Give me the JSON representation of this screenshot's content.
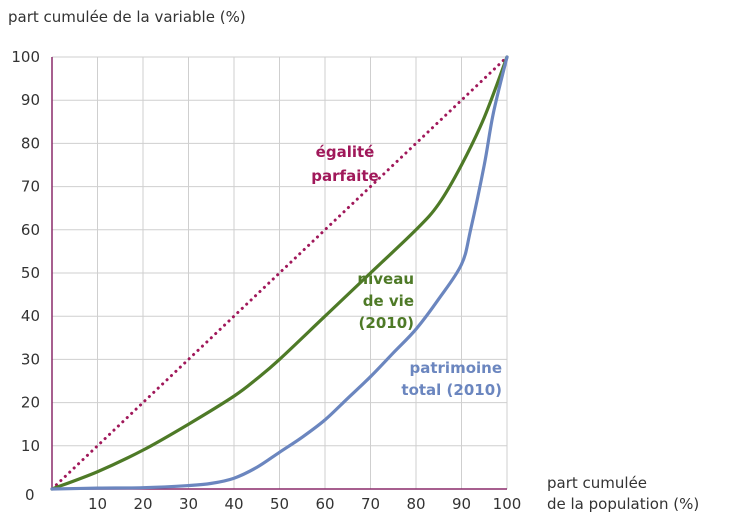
{
  "chart_data": {
    "type": "line",
    "title": "",
    "ylabel": "part cumulée de la variable (%)",
    "xlabel_lines": [
      "part cumulée",
      "de la population (%)"
    ],
    "xlim": [
      0,
      100
    ],
    "ylim": [
      0,
      100
    ],
    "x_ticks": [
      10,
      20,
      30,
      40,
      50,
      60,
      70,
      80,
      90,
      100
    ],
    "y_ticks": [
      10,
      20,
      30,
      40,
      50,
      60,
      70,
      80,
      90,
      100
    ],
    "origin_label": "0",
    "grid": true,
    "series": [
      {
        "name": "égalité parfaite",
        "label_lines": [
          "égalité",
          "parfaite"
        ],
        "color": "#a0185a",
        "style": "dotted",
        "x": [
          0,
          100
        ],
        "y": [
          0,
          100
        ]
      },
      {
        "name": "niveau de vie (2010)",
        "label_lines": [
          "niveau",
          "de vie",
          "(2010)"
        ],
        "color": "#4e7a27",
        "style": "solid",
        "x": [
          0,
          10,
          20,
          30,
          40,
          45,
          50,
          60,
          70,
          80,
          85,
          90,
          95,
          100
        ],
        "y": [
          0,
          4,
          9,
          15,
          21.5,
          25.5,
          30,
          40,
          50,
          60,
          66,
          75,
          86,
          100
        ]
      },
      {
        "name": "patrimoine total (2010)",
        "label_lines": [
          "patrimoine",
          "total (2010)"
        ],
        "color": "#6b86bf",
        "style": "solid",
        "x": [
          0,
          10,
          20,
          30,
          35,
          40,
          45,
          50,
          55,
          60,
          65,
          70,
          75,
          80,
          85,
          90,
          92,
          95,
          97,
          100
        ],
        "y": [
          0,
          0.2,
          0.3,
          0.8,
          1.3,
          2.5,
          5,
          8.5,
          12,
          16,
          21,
          26,
          31.5,
          37,
          44,
          52,
          60,
          75,
          87,
          100
        ]
      }
    ]
  }
}
